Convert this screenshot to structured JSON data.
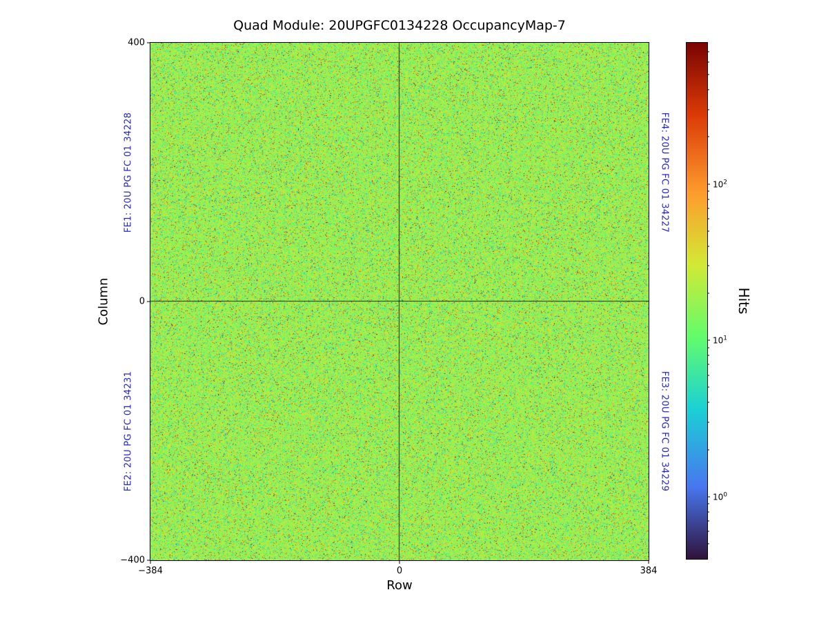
{
  "chart_data": {
    "type": "heatmap",
    "title": "Quad Module: 20UPGFC0134228 OccupancyMap-7",
    "xlabel": "Row",
    "ylabel": "Column",
    "xlim": [
      -384,
      384
    ],
    "ylim": [
      -400,
      400
    ],
    "grid": false,
    "x_tick_labels": [
      "−384",
      "0",
      "384"
    ],
    "y_tick_labels": [
      "400",
      "0",
      "−400"
    ],
    "fe_labels": {
      "top_left": "FE1: 20U PG FC 01 34228",
      "bottom_left": "FE2: 20U PG FC 01 34231",
      "bottom_right": "FE3: 20U PG FC 01 34229",
      "top_right": "FE4: 20U PG FC 01 34227"
    },
    "crosshair": {
      "row": 0,
      "column": 0
    },
    "colorbar": {
      "label": "Hits",
      "scale": "log",
      "vmin": 0.4,
      "vmax": 800,
      "major_ticks": [
        {
          "base": "10",
          "exp": "0",
          "value": 1
        },
        {
          "base": "10",
          "exp": "1",
          "value": 10
        },
        {
          "base": "10",
          "exp": "2",
          "value": 100
        }
      ],
      "colormap": "turbo",
      "colormap_stops": [
        "#30123b",
        "#4777ef",
        "#1bd0d5",
        "#62fc6b",
        "#d2e935",
        "#fe9b2d",
        "#db3a07",
        "#7a0403"
      ],
      "colormap_positions": [
        0,
        0.14,
        0.29,
        0.43,
        0.57,
        0.71,
        0.86,
        1
      ]
    },
    "data_summary": {
      "description": "Per-pixel hit occupancy of a quad pixel module; uniform speckled noise across all four front-end chips, dominant occupancy in the yellow-green band with scattered teal, orange, red and dark outlier pixels; dark crosshair lines at Row=0 and Column=0 mark chip boundaries.",
      "typical_hits": 20,
      "typical_hits_range": [
        10,
        40
      ]
    },
    "noise_model": {
      "base": {
        "mean_t": 0.51,
        "sd": 0.05
      },
      "speckles": [
        {
          "name": "teal",
          "mean_t": 0.35,
          "sd": 0.055,
          "weight": 0.11
        },
        {
          "name": "orange",
          "mean_t": 0.74,
          "sd": 0.06,
          "weight": 0.033
        },
        {
          "name": "red",
          "mean_t": 0.9,
          "sd": 0.04,
          "weight": 0.012
        },
        {
          "name": "dark",
          "mean_t": 0.08,
          "sd": 0.05,
          "weight": 0.01
        }
      ]
    }
  },
  "colors": {
    "background": "#ffffff",
    "axis": "#000000",
    "fe_label": "#2222cc",
    "crosshair": "rgba(0,0,0,0.8)"
  }
}
